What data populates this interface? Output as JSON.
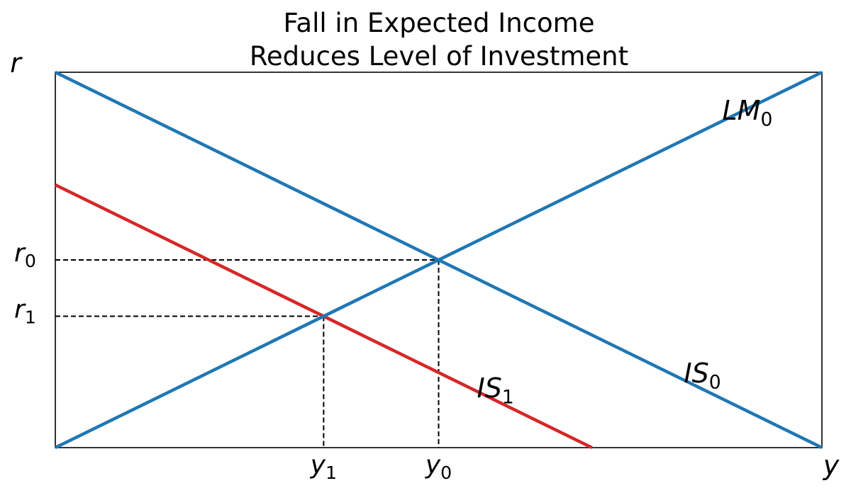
{
  "chart_data": {
    "type": "line",
    "title": "Fall in Expected Income",
    "subtitle": "Reduces Level of Investment",
    "xlabel": "y",
    "ylabel": "r",
    "xlim": [
      0,
      1
    ],
    "ylim": [
      0,
      1
    ],
    "grid": false,
    "series": [
      {
        "name": "LM",
        "label_base": "LM",
        "label_sub": "0",
        "color": "#1f77b4",
        "points": [
          [
            0,
            0
          ],
          [
            1,
            1
          ]
        ],
        "label_at": [
          0.87,
          0.9
        ]
      },
      {
        "name": "IS",
        "label_base": "IS",
        "label_sub": "0",
        "color": "#1f77b4",
        "points": [
          [
            0,
            1
          ],
          [
            1,
            0
          ]
        ],
        "label_at": [
          0.82,
          0.2
        ]
      },
      {
        "name": "IS",
        "label_base": "IS",
        "label_sub": "1",
        "color": "#d62728",
        "points": [
          [
            0,
            0.7
          ],
          [
            0.7,
            0
          ]
        ],
        "label_at": [
          0.55,
          0.16
        ]
      }
    ],
    "reference_points": [
      {
        "x": 0.5,
        "y": 0.5,
        "x_tick_base": "y",
        "x_tick_sub": "0",
        "y_tick_base": "r",
        "y_tick_sub": "0"
      },
      {
        "x": 0.35,
        "y": 0.35,
        "x_tick_base": "y",
        "x_tick_sub": "1",
        "y_tick_base": "r",
        "y_tick_sub": "1"
      }
    ]
  }
}
